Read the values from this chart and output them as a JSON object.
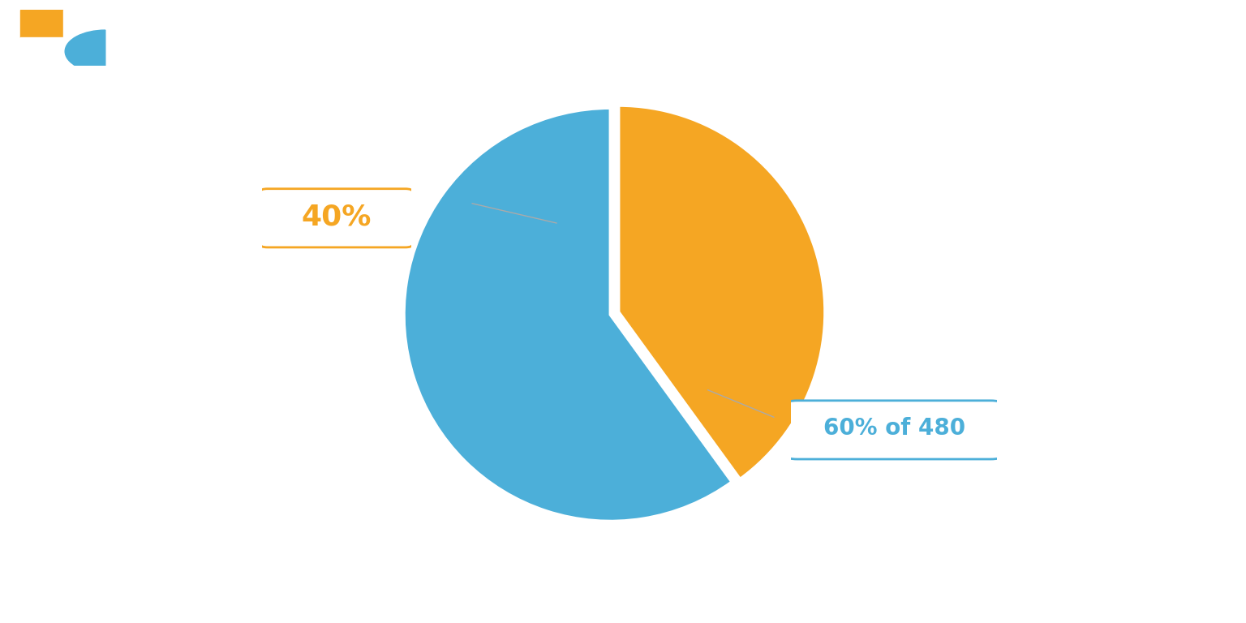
{
  "slices": [
    60,
    40
  ],
  "colors": [
    "#4CAFD9",
    "#F5A623"
  ],
  "background_color": "#FFFFFF",
  "header_color": "#2B3A4A",
  "accent_color": "#4CAFD9",
  "explode": [
    0,
    0.04
  ],
  "startangle": 90,
  "label_40_text": "40%",
  "label_60_text": "60% of 480",
  "label_40_color": "#F5A623",
  "label_60_color": "#4CAFD9",
  "orange_color": "#F5A623",
  "blue_color": "#4CAFD9",
  "white_color": "#FFFFFF",
  "gray_line_color": "#AAAAAA"
}
